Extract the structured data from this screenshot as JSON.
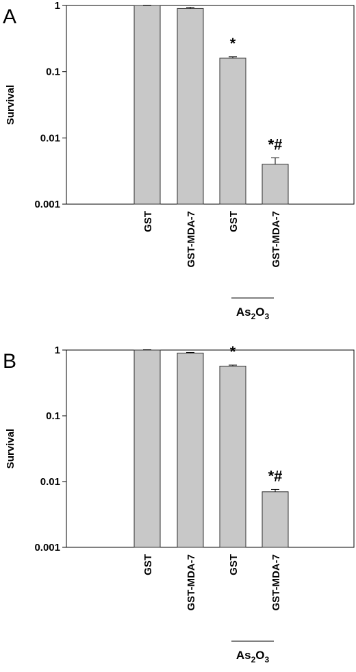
{
  "chart_data": [
    {
      "type": "bar",
      "panel_label": "A",
      "ylabel": "Survival",
      "yscale": "log",
      "ylim": [
        0.001,
        1
      ],
      "yticks": [
        "0.001",
        "0.01",
        "0.1",
        "1"
      ],
      "categories": [
        "GST",
        "GST-MDA-7",
        "GST",
        "GST-MDA-7"
      ],
      "values": [
        1.0,
        0.9,
        0.16,
        0.004
      ],
      "errors": [
        0.01,
        0.04,
        0.008,
        0.001
      ],
      "annotations": [
        "",
        "",
        "*",
        "*#"
      ],
      "group_label": {
        "main": "As",
        "sub1": "2",
        "mid": "O",
        "sub2": "3"
      },
      "group_categories": [
        2,
        3
      ],
      "colors": {
        "bar": "#c8c8c8",
        "bar_edge": "#303030",
        "axis": "#000000"
      }
    },
    {
      "type": "bar",
      "panel_label": "B",
      "ylabel": "Survival",
      "yscale": "log",
      "ylim": [
        0.001,
        1
      ],
      "yticks": [
        "0.001",
        "0.01",
        "0.1",
        "1"
      ],
      "categories": [
        "GST",
        "GST-MDA-7",
        "GST",
        "GST-MDA-7"
      ],
      "values": [
        1.0,
        0.9,
        0.57,
        0.007
      ],
      "errors": [
        0.01,
        0.02,
        0.02,
        0.0006
      ],
      "annotations": [
        "",
        "",
        "*",
        "*#"
      ],
      "group_label": {
        "main": "As",
        "sub1": "2",
        "mid": "O",
        "sub2": "3"
      },
      "group_categories": [
        2,
        3
      ],
      "colors": {
        "bar": "#c8c8c8",
        "bar_edge": "#303030",
        "axis": "#000000"
      }
    }
  ]
}
